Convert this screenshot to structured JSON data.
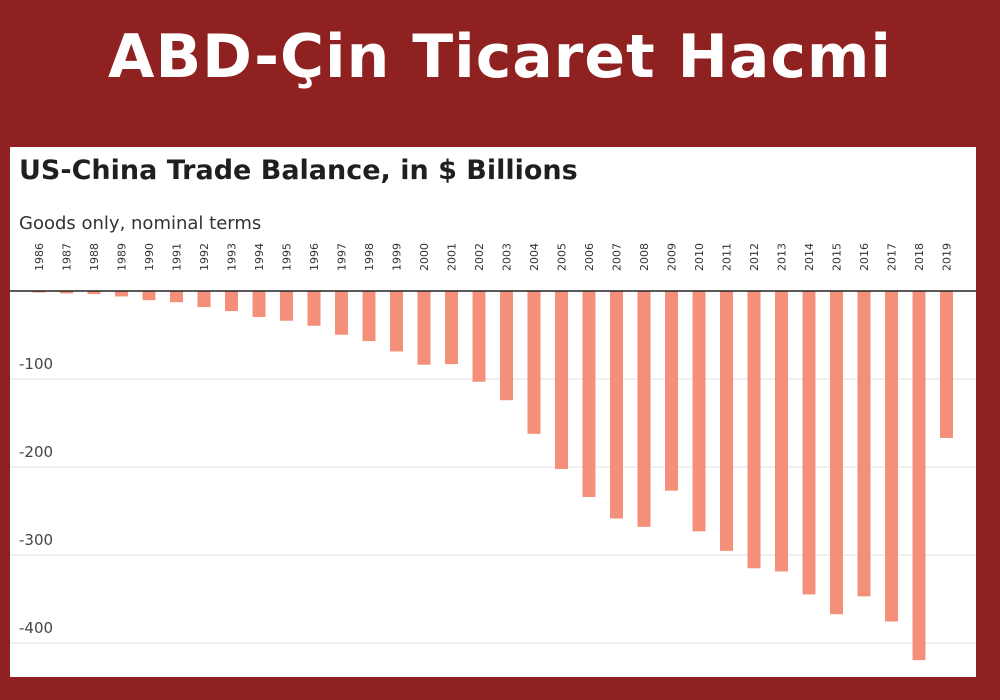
{
  "banner": {
    "title": "ABD-Çin Ticaret Hacmi"
  },
  "chart_data": {
    "type": "bar",
    "title": "US-China Trade Balance, in $ Billions",
    "subtitle": "Goods only, nominal terms",
    "xlabel": "",
    "ylabel": "",
    "categories": [
      "1986",
      "1987",
      "1988",
      "1989",
      "1990",
      "1991",
      "1992",
      "1993",
      "1994",
      "1995",
      "1996",
      "1997",
      "1998",
      "1999",
      "2000",
      "2001",
      "2002",
      "2003",
      "2004",
      "2005",
      "2006",
      "2007",
      "2008",
      "2009",
      "2010",
      "2011",
      "2012",
      "2013",
      "2014",
      "2015",
      "2016",
      "2017",
      "2018",
      "2019"
    ],
    "values": [
      -1.7,
      -2.8,
      -3.5,
      -6.2,
      -10.4,
      -12.7,
      -18.3,
      -22.8,
      -29.5,
      -33.8,
      -39.5,
      -49.7,
      -56.9,
      -68.7,
      -83.8,
      -83.1,
      -103.1,
      -124.1,
      -162.3,
      -202.3,
      -234.1,
      -258.5,
      -268.0,
      -226.9,
      -273.1,
      -295.3,
      -315.1,
      -318.7,
      -344.8,
      -367.3,
      -347.0,
      -375.6,
      -419.5,
      -167.0
    ],
    "yticks": [
      -100,
      -200,
      -300,
      -400
    ],
    "ytick_labels": [
      "-100",
      "-200",
      "-300",
      "-400"
    ],
    "ylim": [
      -430,
      0
    ],
    "grid": true,
    "bar_color": "#f4907a"
  }
}
